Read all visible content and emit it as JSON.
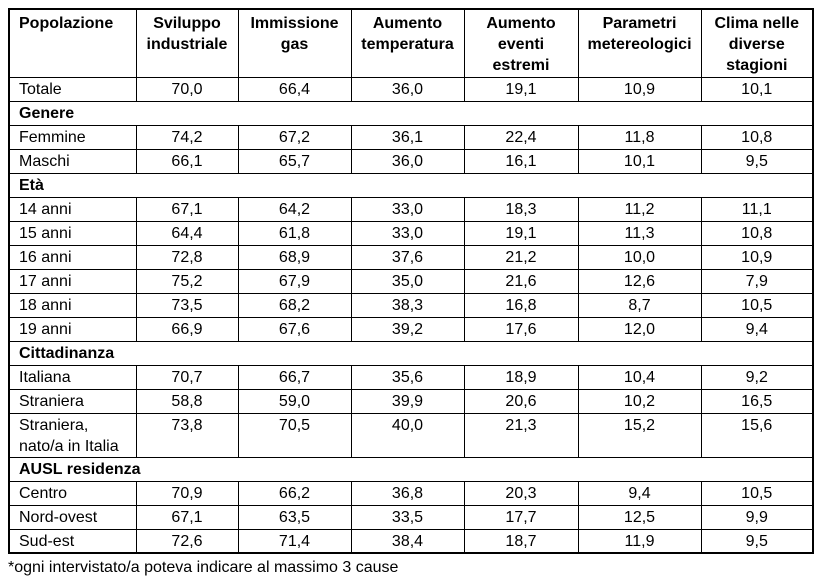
{
  "colors": {
    "border": "#000000",
    "text": "#000000",
    "background": "#ffffff"
  },
  "table": {
    "columns": [
      "Popolazione",
      "Sviluppo industriale",
      "Immissione gas",
      "Aumento temperatura",
      "Aumento eventi estremi",
      "Parametri metereologici",
      "Clima nelle diverse stagioni"
    ],
    "rows": [
      {
        "type": "data",
        "label": "Totale",
        "values": [
          "70,0",
          "66,4",
          "36,0",
          "19,1",
          "10,9",
          "10,1"
        ]
      },
      {
        "type": "section",
        "label": "Genere"
      },
      {
        "type": "data",
        "label": "Femmine",
        "values": [
          "74,2",
          "67,2",
          "36,1",
          "22,4",
          "11,8",
          "10,8"
        ]
      },
      {
        "type": "data",
        "label": "Maschi",
        "values": [
          "66,1",
          "65,7",
          "36,0",
          "16,1",
          "10,1",
          "9,5"
        ]
      },
      {
        "type": "section",
        "label": "Età"
      },
      {
        "type": "data",
        "label": "14 anni",
        "values": [
          "67,1",
          "64,2",
          "33,0",
          "18,3",
          "11,2",
          "11,1"
        ]
      },
      {
        "type": "data",
        "label": "15 anni",
        "values": [
          "64,4",
          "61,8",
          "33,0",
          "19,1",
          "11,3",
          "10,8"
        ]
      },
      {
        "type": "data",
        "label": "16 anni",
        "values": [
          "72,8",
          "68,9",
          "37,6",
          "21,2",
          "10,0",
          "10,9"
        ]
      },
      {
        "type": "data",
        "label": "17 anni",
        "values": [
          "75,2",
          "67,9",
          "35,0",
          "21,6",
          "12,6",
          "7,9"
        ]
      },
      {
        "type": "data",
        "label": "18 anni",
        "values": [
          "73,5",
          "68,2",
          "38,3",
          "16,8",
          "8,7",
          "10,5"
        ]
      },
      {
        "type": "data",
        "label": "19 anni",
        "values": [
          "66,9",
          "67,6",
          "39,2",
          "17,6",
          "12,0",
          "9,4"
        ]
      },
      {
        "type": "section",
        "label": "Cittadinanza"
      },
      {
        "type": "data",
        "label": "Italiana",
        "values": [
          "70,7",
          "66,7",
          "35,6",
          "18,9",
          "10,4",
          "9,2"
        ]
      },
      {
        "type": "data",
        "label": "Straniera",
        "values": [
          "58,8",
          "59,0",
          "39,9",
          "20,6",
          "10,2",
          "16,5"
        ]
      },
      {
        "type": "data",
        "label": "Straniera, nato/a in Italia",
        "values": [
          "73,8",
          "70,5",
          "40,0",
          "21,3",
          "15,2",
          "15,6"
        ]
      },
      {
        "type": "section",
        "label": "AUSL residenza"
      },
      {
        "type": "data",
        "label": "Centro",
        "values": [
          "70,9",
          "66,2",
          "36,8",
          "20,3",
          "9,4",
          "10,5"
        ]
      },
      {
        "type": "data",
        "label": "Nord-ovest",
        "values": [
          "67,1",
          "63,5",
          "33,5",
          "17,7",
          "12,5",
          "9,9"
        ]
      },
      {
        "type": "data",
        "label": "Sud-est",
        "values": [
          "72,6",
          "71,4",
          "38,4",
          "18,7",
          "11,9",
          "9,5"
        ]
      }
    ]
  },
  "footnote": "*ogni intervistato/a poteva indicare al massimo 3 cause"
}
